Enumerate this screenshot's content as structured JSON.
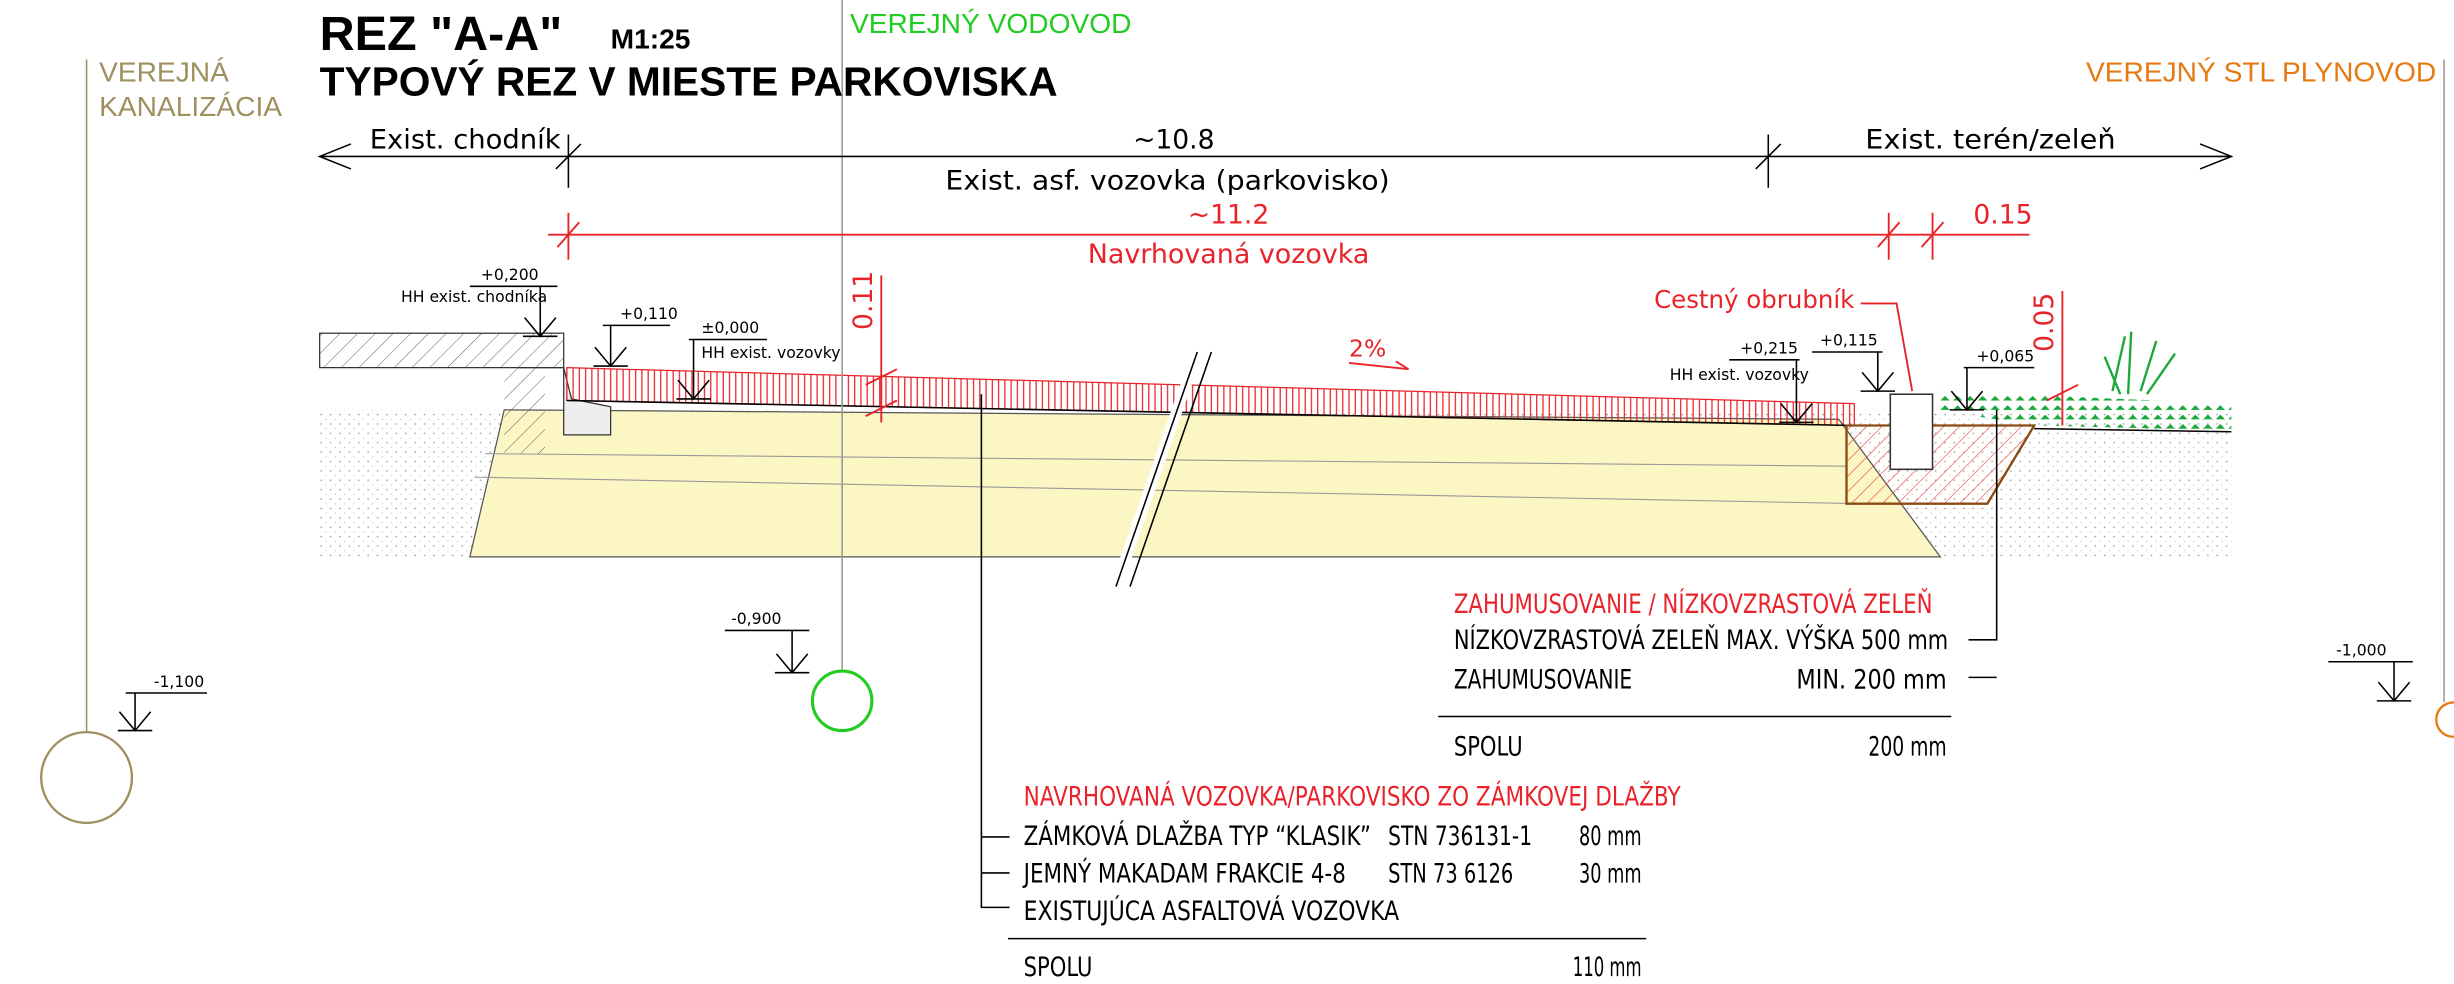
{
  "header": {
    "title": "REZ \"A-A\"",
    "scale": "M1:25",
    "subtitle": "TYPOVÝ REZ V MIESTE PARKOVISKA"
  },
  "utilities": [
    {
      "label": [
        "VEREJNÁ",
        "KANALIZÁCIA"
      ],
      "elevation": "-1,100"
    },
    {
      "label": [
        "VEREJNÝ VODOVOD"
      ],
      "elevation": "-0,900"
    },
    {
      "label": [
        "VEREJNÝ STL PLYNOVOD"
      ],
      "elevation": "-1,000"
    }
  ],
  "dimensions": {
    "existing": [
      "Exist. chodník",
      "~10.8",
      "Exist. terén/zeleň"
    ],
    "existing_note": "Exist. asf. vozovka (parkovisko)",
    "proposed": [
      "~11.2",
      "0.15"
    ],
    "proposed_note": "Navrhovaná vozovka",
    "layer_thickness": "0.11",
    "curb_height": "0.05",
    "slope": "2%"
  },
  "levels": [
    {
      "value": "+0,200",
      "note": "HH exist. chodníka"
    },
    {
      "value": "+0,110"
    },
    {
      "value": "±0,000",
      "note": "HH exist. vozovky"
    },
    {
      "value": "+0,215",
      "note": "HH exist. vozovky"
    },
    {
      "value": "+0,115"
    },
    {
      "value": "+0,065"
    }
  ],
  "curb_label": "Cestný obrubník",
  "legend_green": {
    "title": "ZAHUMUSOVANIE / NÍZKOVZRASTOVÁ ZELEŇ",
    "rows": [
      [
        "NÍZKOVZRASTOVÁ ZELEŇ MAX. VÝŠKA 500 mm"
      ],
      [
        "ZAHUMUSOVANIE",
        "MIN. 200 mm"
      ]
    ],
    "total": [
      "SPOLU",
      "200 mm"
    ]
  },
  "legend_pavement": {
    "title": "NAVRHOVANÁ VOZOVKA/PARKOVISKO ZO ZÁMKOVEJ DLAŽBY",
    "rows": [
      [
        "ZÁMKOVÁ DLAŽBA TYP “KLASIK”",
        "STN 736131-1",
        "80 mm"
      ],
      [
        "JEMNÝ MAKADAM FRAKCIE 4-8",
        "STN 73 6126",
        "30 mm"
      ],
      [
        "EXISTUJÚCA ASFALTOVÁ VOZOVKA"
      ]
    ],
    "total": [
      "SPOLU",
      "110 mm"
    ]
  }
}
